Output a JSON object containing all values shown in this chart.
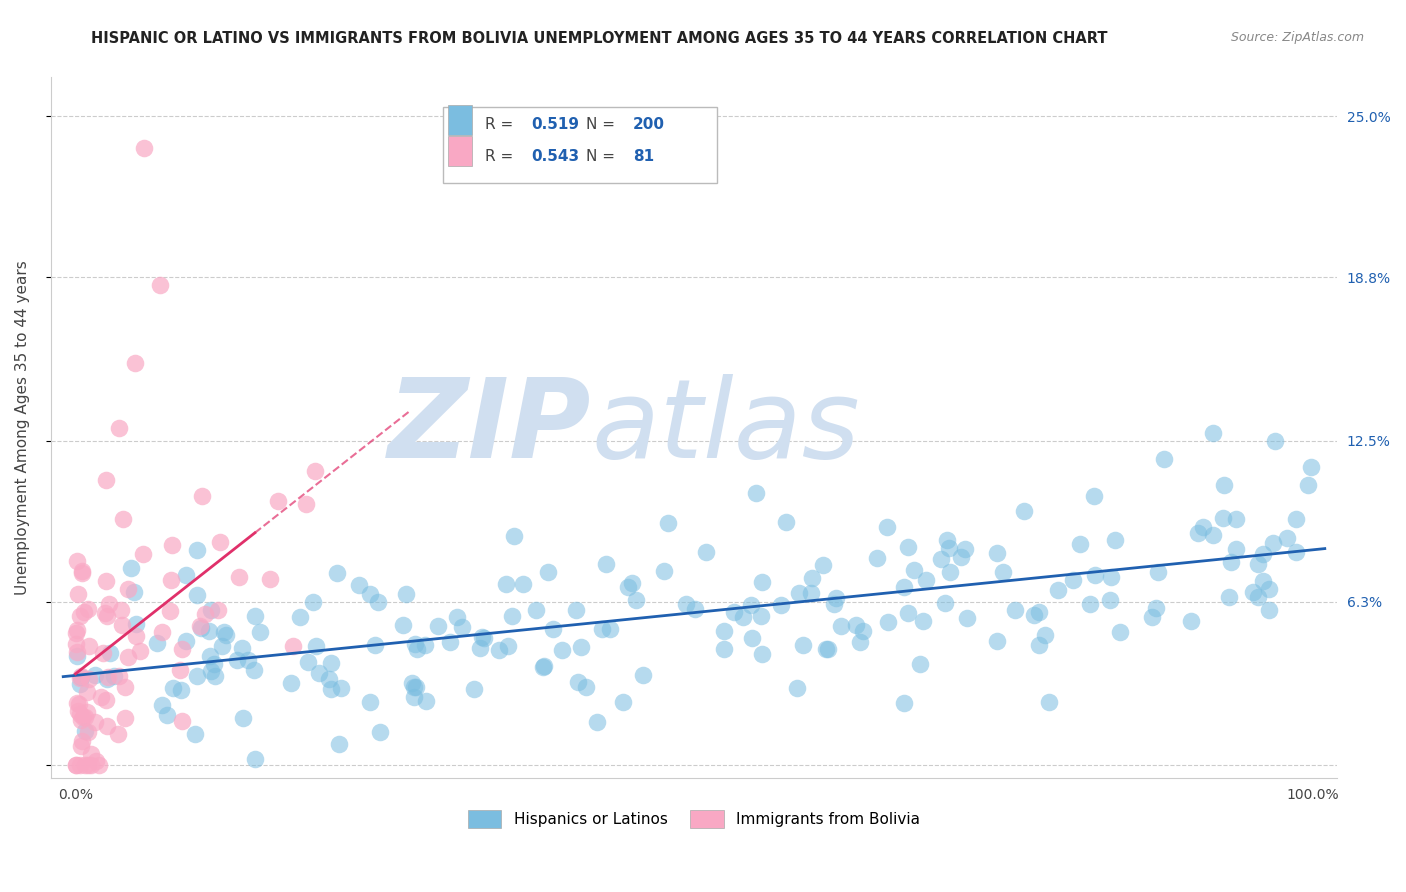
{
  "title": "HISPANIC OR LATINO VS IMMIGRANTS FROM BOLIVIA UNEMPLOYMENT AMONG AGES 35 TO 44 YEARS CORRELATION CHART",
  "source": "Source: ZipAtlas.com",
  "ylabel": "Unemployment Among Ages 35 to 44 years",
  "xlim": [
    -0.02,
    1.02
  ],
  "ylim": [
    -0.005,
    0.265
  ],
  "xtick_positions": [
    0.0,
    0.25,
    0.5,
    0.75,
    1.0
  ],
  "xtick_labels": [
    "0.0%",
    "",
    "",
    "",
    "100.0%"
  ],
  "ytick_values": [
    0.0,
    0.063,
    0.125,
    0.188,
    0.25
  ],
  "ytick_labels_right": [
    "",
    "6.3%",
    "12.5%",
    "18.8%",
    "25.0%"
  ],
  "blue_R": 0.519,
  "blue_N": 200,
  "pink_R": 0.543,
  "pink_N": 81,
  "blue_color": "#7bbde0",
  "pink_color": "#f9a8c4",
  "blue_line_color": "#2060b0",
  "pink_line_color": "#e0306a",
  "watermark_zip": "ZIP",
  "watermark_atlas": "atlas",
  "watermark_color": "#d0dff0",
  "legend_label_blue": "Hispanics or Latinos",
  "legend_label_pink": "Immigrants from Bolivia",
  "title_fontsize": 10.5,
  "axis_label_fontsize": 11,
  "tick_fontsize": 10
}
